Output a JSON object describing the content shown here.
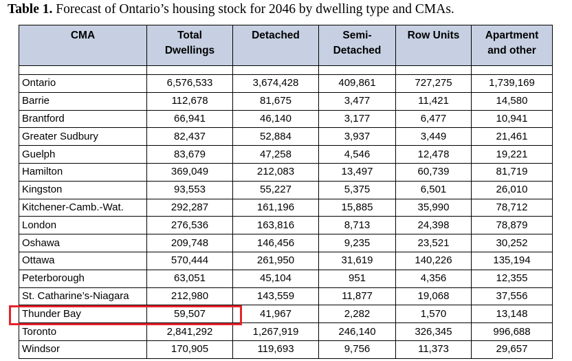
{
  "caption": {
    "label": "Table 1.",
    "text": " Forecast of Ontario’s housing stock for 2046 by dwelling type and CMAs."
  },
  "table": {
    "headers": [
      [
        "CMA"
      ],
      [
        "Total",
        "Dwellings"
      ],
      [
        "Detached"
      ],
      [
        "Semi-",
        "Detached"
      ],
      [
        "Row Units"
      ],
      [
        "Apartment",
        "and other"
      ]
    ],
    "rows": [
      [
        "Ontario",
        "6,576,533",
        "3,674,428",
        "409,861",
        "727,275",
        "1,739,169"
      ],
      [
        "Barrie",
        "112,678",
        "81,675",
        "3,477",
        "11,421",
        "14,580"
      ],
      [
        "Brantford",
        "66,941",
        "46,140",
        "3,177",
        "6,477",
        "10,941"
      ],
      [
        "Greater Sudbury",
        "82,437",
        "52,884",
        "3,937",
        "3,449",
        "21,461"
      ],
      [
        "Guelph",
        "83,679",
        "47,258",
        "4,546",
        "12,478",
        "19,221"
      ],
      [
        "Hamilton",
        "369,049",
        "212,083",
        "13,497",
        "60,739",
        "81,719"
      ],
      [
        "Kingston",
        "93,553",
        "55,227",
        "5,375",
        "6,501",
        "26,010"
      ],
      [
        "Kitchener-Camb.-Wat.",
        "292,287",
        "161,196",
        "15,885",
        "35,990",
        "78,712"
      ],
      [
        "London",
        "276,536",
        "163,816",
        "8,713",
        "24,398",
        "78,879"
      ],
      [
        "Oshawa",
        "209,748",
        "146,456",
        "9,235",
        "23,521",
        "30,252"
      ],
      [
        "Ottawa",
        "570,444",
        "261,950",
        "31,619",
        "140,226",
        "135,194"
      ],
      [
        "Peterborough",
        "63,051",
        "45,104",
        "951",
        "4,356",
        "12,355"
      ],
      [
        "St. Catharine’s-Niagara",
        "212,980",
        "143,559",
        "11,877",
        "19,068",
        "37,556"
      ],
      [
        "Thunder Bay",
        "59,507",
        "41,967",
        "2,282",
        "1,570",
        "13,148"
      ],
      [
        "Toronto",
        "2,841,292",
        "1,267,919",
        "246,140",
        "326,345",
        "996,688"
      ],
      [
        "Windsor",
        "170,905",
        "119,693",
        "9,756",
        "11,373",
        "29,657"
      ]
    ]
  },
  "colors": {
    "header_background": "#c6d0e2",
    "highlight_border": "#e5232a"
  }
}
